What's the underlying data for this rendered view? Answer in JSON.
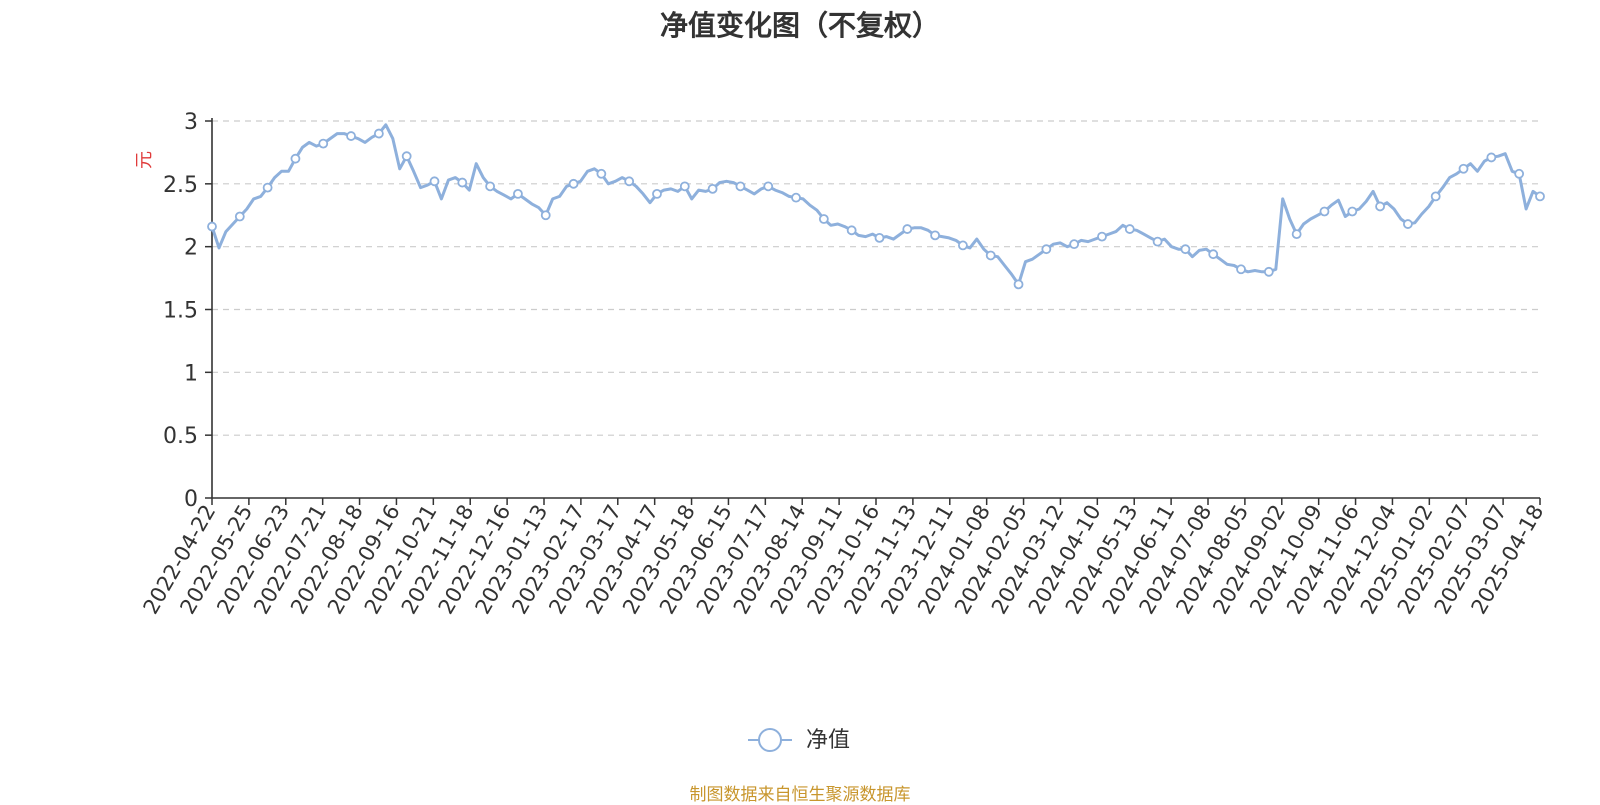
{
  "chart_data": {
    "type": "line",
    "title": "净值变化图（不复权）",
    "ylabel": "元",
    "ylim": [
      0,
      3
    ],
    "yticks": [
      "0",
      "0.5",
      "1",
      "1.5",
      "2",
      "2.5",
      "3"
    ],
    "xtick_labels": [
      "2022-04-22",
      "2022-05-25",
      "2022-06-23",
      "2022-07-21",
      "2022-08-18",
      "2022-09-16",
      "2022-10-21",
      "2022-11-18",
      "2022-12-16",
      "2023-01-13",
      "2023-02-17",
      "2023-03-17",
      "2023-04-17",
      "2023-05-18",
      "2023-06-15",
      "2023-07-17",
      "2023-08-14",
      "2023-09-11",
      "2023-10-16",
      "2023-11-13",
      "2023-12-11",
      "2024-01-08",
      "2024-02-05",
      "2024-03-12",
      "2024-04-10",
      "2024-05-13",
      "2024-06-11",
      "2024-07-08",
      "2024-08-05",
      "2024-09-02",
      "2024-10-09",
      "2024-11-06",
      "2024-12-04",
      "2025-01-02",
      "2025-02-07",
      "2025-03-07",
      "2025-04-18"
    ],
    "grid": true,
    "legend_position": "bottom",
    "series": [
      {
        "name": "净值",
        "color": "#8eb0dc",
        "values": [
          2.16,
          1.99,
          2.12,
          2.18,
          2.24,
          2.3,
          2.38,
          2.4,
          2.47,
          2.55,
          2.6,
          2.6,
          2.7,
          2.79,
          2.83,
          2.8,
          2.82,
          2.86,
          2.9,
          2.9,
          2.88,
          2.86,
          2.83,
          2.87,
          2.9,
          2.97,
          2.86,
          2.62,
          2.72,
          2.6,
          2.47,
          2.49,
          2.52,
          2.38,
          2.53,
          2.55,
          2.51,
          2.45,
          2.66,
          2.55,
          2.48,
          2.44,
          2.41,
          2.38,
          2.42,
          2.38,
          2.34,
          2.31,
          2.25,
          2.38,
          2.4,
          2.48,
          2.5,
          2.52,
          2.6,
          2.62,
          2.58,
          2.5,
          2.52,
          2.55,
          2.52,
          2.48,
          2.42,
          2.35,
          2.42,
          2.45,
          2.46,
          2.44,
          2.48,
          2.38,
          2.45,
          2.44,
          2.46,
          2.51,
          2.52,
          2.51,
          2.48,
          2.45,
          2.42,
          2.46,
          2.48,
          2.45,
          2.43,
          2.4,
          2.39,
          2.38,
          2.33,
          2.29,
          2.22,
          2.17,
          2.18,
          2.16,
          2.13,
          2.09,
          2.08,
          2.1,
          2.07,
          2.08,
          2.06,
          2.1,
          2.14,
          2.15,
          2.15,
          2.13,
          2.09,
          2.08,
          2.07,
          2.05,
          2.01,
          1.99,
          2.06,
          1.98,
          1.93,
          1.92,
          1.85,
          1.78,
          1.7,
          1.88,
          1.9,
          1.94,
          1.98,
          2.02,
          2.03,
          2.0,
          2.02,
          2.05,
          2.04,
          2.06,
          2.08,
          2.1,
          2.12,
          2.17,
          2.14,
          2.13,
          2.1,
          2.07,
          2.04,
          2.06,
          2.0,
          1.98,
          1.98,
          1.92,
          1.97,
          1.98,
          1.94,
          1.9,
          1.86,
          1.85,
          1.82,
          1.8,
          1.81,
          1.8,
          1.8,
          1.82,
          2.38,
          2.22,
          2.1,
          2.18,
          2.22,
          2.25,
          2.28,
          2.33,
          2.37,
          2.24,
          2.28,
          2.3,
          2.36,
          2.44,
          2.32,
          2.35,
          2.3,
          2.22,
          2.18,
          2.19,
          2.26,
          2.32,
          2.4,
          2.47,
          2.55,
          2.58,
          2.62,
          2.66,
          2.6,
          2.68,
          2.71,
          2.72,
          2.74,
          2.6,
          2.58,
          2.3,
          2.44,
          2.4
        ]
      }
    ],
    "legend_label": "净值"
  },
  "footer": {
    "source": "制图数据来自恒生聚源数据库"
  }
}
